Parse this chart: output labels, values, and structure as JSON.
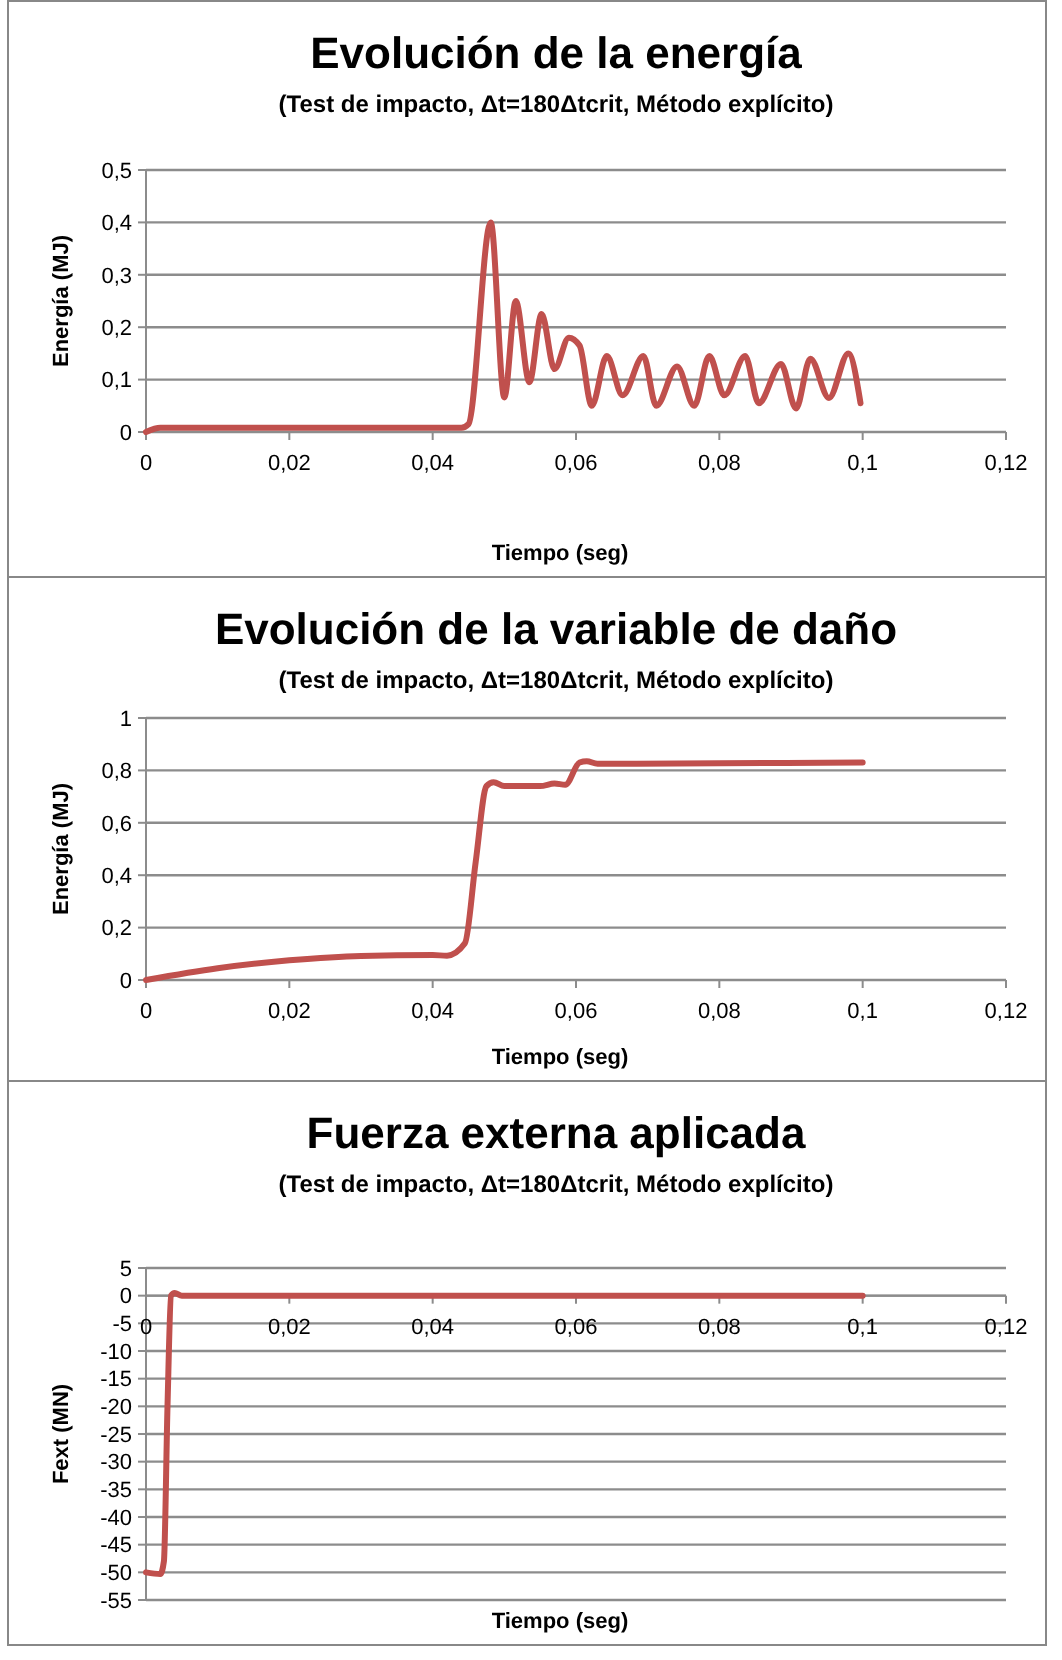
{
  "chart_data": [
    {
      "type": "line",
      "title": "Evolución de la energía",
      "subtitle": "(Test de impacto, Δt=180Δtcrit, Método explícito)",
      "xlabel": "Tiempo (seg)",
      "ylabel": "Energía (MJ)",
      "grid": "y",
      "marker": "none",
      "line_style": "solid",
      "xlim": [
        0,
        0.12
      ],
      "ylim": [
        0,
        0.5
      ],
      "xticks": [
        {
          "value": 0,
          "label": "0"
        },
        {
          "value": 0.02,
          "label": "0,02"
        },
        {
          "value": 0.04,
          "label": "0,04"
        },
        {
          "value": 0.06,
          "label": "0,06"
        },
        {
          "value": 0.08,
          "label": "0,08"
        },
        {
          "value": 0.1,
          "label": "0,1"
        },
        {
          "value": 0.12,
          "label": "0,12"
        }
      ],
      "yticks": [
        0,
        {
          "value": 0.1,
          "label": "0,1"
        },
        {
          "value": 0.2,
          "label": "0,2"
        },
        {
          "value": 0.3,
          "label": "0,3"
        },
        {
          "value": 0.4,
          "label": "0,4"
        },
        {
          "value": 0.5,
          "label": "0,5"
        }
      ],
      "series": [
        {
          "color": "#c0504d",
          "x": [
            0,
            0.002,
            0.02,
            0.044,
            0.045,
            0.0481,
            0.05,
            0.0516,
            0.0535,
            0.0552,
            0.057,
            0.059,
            0.0605,
            0.0622,
            0.0643,
            0.0665,
            0.0694,
            0.0712,
            0.0741,
            0.0765,
            0.0786,
            0.0807,
            0.0836,
            0.0855,
            0.0886,
            0.0907,
            0.0927,
            0.0953,
            0.098,
            0.0997
          ],
          "values": [
            0,
            0.008,
            0.008,
            0.008,
            0.015,
            0.4,
            0.066,
            0.25,
            0.095,
            0.225,
            0.12,
            0.18,
            0.165,
            0.05,
            0.145,
            0.07,
            0.145,
            0.05,
            0.125,
            0.05,
            0.145,
            0.07,
            0.145,
            0.055,
            0.13,
            0.045,
            0.14,
            0.065,
            0.15,
            0.055
          ]
        }
      ]
    },
    {
      "type": "line",
      "title": "Evolución de la variable de daño",
      "subtitle": "(Test de impacto, Δt=180Δtcrit, Método explícito)",
      "xlabel": "Tiempo (seg)",
      "ylabel": "Energía (MJ)",
      "grid": "y",
      "marker": "none",
      "line_style": "solid",
      "xlim": [
        0,
        0.12
      ],
      "ylim": [
        0,
        1
      ],
      "xticks": [
        {
          "value": 0,
          "label": "0"
        },
        {
          "value": 0.02,
          "label": "0,02"
        },
        {
          "value": 0.04,
          "label": "0,04"
        },
        {
          "value": 0.06,
          "label": "0,06"
        },
        {
          "value": 0.08,
          "label": "0,08"
        },
        {
          "value": 0.1,
          "label": "0,1"
        },
        {
          "value": 0.12,
          "label": "0,12"
        }
      ],
      "yticks": [
        0,
        {
          "value": 0.2,
          "label": "0,2"
        },
        {
          "value": 0.4,
          "label": "0,4"
        },
        {
          "value": 0.6,
          "label": "0,6"
        },
        {
          "value": 0.8,
          "label": "0,8"
        },
        1
      ],
      "series": [
        {
          "color": "#c0504d",
          "x": [
            0,
            0.01,
            0.02,
            0.03,
            0.04,
            0.042,
            0.0445,
            0.046,
            0.0475,
            0.0485,
            0.05,
            0.055,
            0.057,
            0.0585,
            0.0605,
            0.0615,
            0.063,
            0.08,
            0.1
          ],
          "values": [
            0,
            0.045,
            0.075,
            0.092,
            0.095,
            0.093,
            0.14,
            0.45,
            0.74,
            0.755,
            0.74,
            0.74,
            0.75,
            0.745,
            0.83,
            0.835,
            0.825,
            0.827,
            0.83
          ]
        }
      ]
    },
    {
      "type": "line",
      "title": "Fuerza externa aplicada",
      "subtitle": "(Test de impacto, Δt=180Δtcrit, Método explícito)",
      "xlabel": "Tiempo (seg)",
      "ylabel": "Fext (MN)",
      "grid": "y",
      "marker": "none",
      "line_style": "solid",
      "xlim": [
        0,
        0.12
      ],
      "ylim": [
        -55,
        5
      ],
      "xticks": [
        {
          "value": 0,
          "label": "0"
        },
        {
          "value": 0.02,
          "label": "0,02"
        },
        {
          "value": 0.04,
          "label": "0,04"
        },
        {
          "value": 0.06,
          "label": "0,06"
        },
        {
          "value": 0.08,
          "label": "0,08"
        },
        {
          "value": 0.1,
          "label": "0,1"
        },
        {
          "value": 0.12,
          "label": "0,12"
        }
      ],
      "yticks": [
        5,
        0,
        -5,
        -10,
        -15,
        -20,
        -25,
        -30,
        -35,
        -40,
        -45,
        -50,
        -55
      ],
      "series": [
        {
          "color": "#c0504d",
          "x": [
            0,
            0.002,
            0.0025,
            0.003,
            0.0035,
            0.004,
            0.005,
            0.1
          ],
          "values": [
            -50,
            -50.3,
            -48,
            -20,
            0,
            0.5,
            0,
            0
          ]
        }
      ]
    }
  ]
}
